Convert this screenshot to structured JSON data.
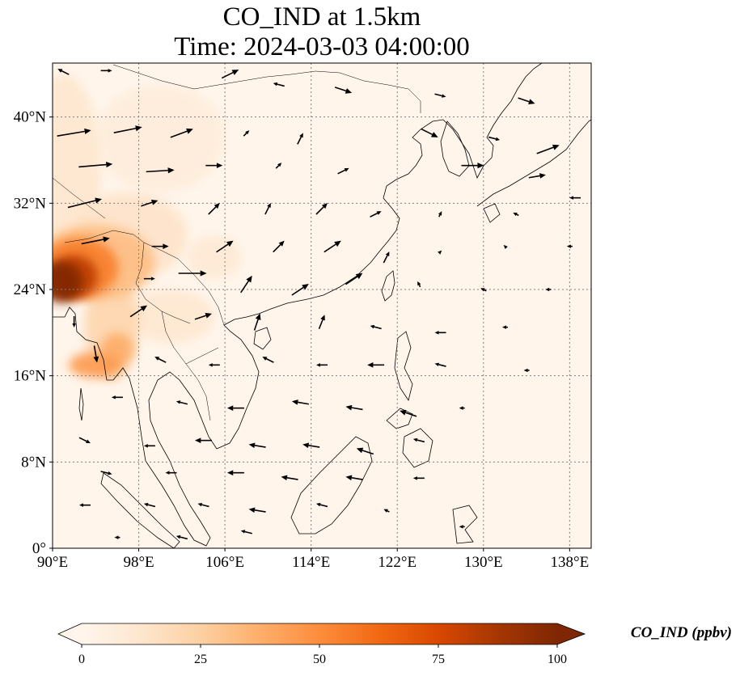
{
  "title": {
    "line1": "CO_IND at 1.5km",
    "line2": "Time: 2024-03-03 04:00:00"
  },
  "map": {
    "lon_range": [
      90,
      140
    ],
    "lat_range": [
      0,
      45
    ],
    "x_ticks": [
      {
        "value": 90,
        "label": "90°E"
      },
      {
        "value": 98,
        "label": "98°E"
      },
      {
        "value": 106,
        "label": "106°E"
      },
      {
        "value": 114,
        "label": "114°E"
      },
      {
        "value": 122,
        "label": "122°E"
      },
      {
        "value": 130,
        "label": "130°E"
      },
      {
        "value": 138,
        "label": "138°E"
      }
    ],
    "y_ticks": [
      {
        "value": 0,
        "label": "0°"
      },
      {
        "value": 8,
        "label": "8°N"
      },
      {
        "value": 16,
        "label": "16°N"
      },
      {
        "value": 24,
        "label": "24°N"
      },
      {
        "value": 32,
        "label": "32°N"
      },
      {
        "value": 40,
        "label": "40°N"
      }
    ],
    "gridlines": true,
    "colors": {
      "gridline": "#808080",
      "coastline": "#000000",
      "arrow": "#000000",
      "background": "#fff5eb"
    }
  },
  "colorbar": {
    "label": "CO_IND (ppbv)",
    "min": 0,
    "max": 100,
    "ticks": [
      {
        "value": 0,
        "label": "0"
      },
      {
        "value": 25,
        "label": "25"
      },
      {
        "value": 50,
        "label": "50"
      },
      {
        "value": 75,
        "label": "75"
      },
      {
        "value": 100,
        "label": "100"
      }
    ],
    "colors": [
      "#fff5eb",
      "#fee6ce",
      "#fdd0a2",
      "#fdae6b",
      "#fd8d3c",
      "#f16913",
      "#d94801",
      "#a63603",
      "#7f2704"
    ],
    "extend": "both"
  },
  "concentration_features": [
    {
      "lon": 90.8,
      "lat": 24.7,
      "rlon": 2.0,
      "rlat": 1.9,
      "value": 100
    },
    {
      "lon": 92.0,
      "lat": 25.2,
      "rlon": 2.2,
      "rlat": 2.0,
      "value": 82
    },
    {
      "lon": 92.5,
      "lat": 26.0,
      "rlon": 3.6,
      "rlat": 2.8,
      "value": 55
    },
    {
      "lon": 94.0,
      "lat": 26.5,
      "rlon": 5.5,
      "rlat": 3.5,
      "value": 32
    },
    {
      "lon": 95.5,
      "lat": 20.5,
      "rlon": 2.5,
      "rlat": 5.0,
      "value": 22
    },
    {
      "lon": 94.0,
      "lat": 17.0,
      "rlon": 2.5,
      "rlat": 1.2,
      "value": 45
    },
    {
      "lon": 96.0,
      "lat": 18.5,
      "rlon": 1.5,
      "rlat": 1.5,
      "value": 38
    },
    {
      "lon": 91.0,
      "lat": 35.0,
      "rlon": 3.5,
      "rlat": 9.0,
      "value": 12
    },
    {
      "lon": 97.0,
      "lat": 29.0,
      "rlon": 5.5,
      "rlat": 4.0,
      "value": 14
    },
    {
      "lon": 101.0,
      "lat": 21.5,
      "rlon": 4.0,
      "rlat": 2.5,
      "value": 11
    },
    {
      "lon": 105.0,
      "lat": 27.0,
      "rlon": 2.5,
      "rlat": 2.0,
      "value": 10
    },
    {
      "lon": 100.0,
      "lat": 38.0,
      "rlon": 6.0,
      "rlat": 5.0,
      "value": 7
    }
  ],
  "wind_vectors": [
    {
      "lon": 91.0,
      "lat": 44.2,
      "u": -2,
      "v": 1
    },
    {
      "lon": 95.0,
      "lat": 44.3,
      "u": 2,
      "v": 0
    },
    {
      "lon": 106.5,
      "lat": 44.0,
      "u": 3,
      "v": 1.5
    },
    {
      "lon": 111.0,
      "lat": 43.0,
      "u": -2,
      "v": 0.5
    },
    {
      "lon": 117.0,
      "lat": 42.5,
      "u": 3,
      "v": -1
    },
    {
      "lon": 126.0,
      "lat": 42.0,
      "u": 2,
      "v": -0.5
    },
    {
      "lon": 134.0,
      "lat": 41.5,
      "u": 3,
      "v": -1
    },
    {
      "lon": 92.0,
      "lat": 38.5,
      "u": 6,
      "v": 1
    },
    {
      "lon": 97.0,
      "lat": 38.8,
      "u": 5,
      "v": 1
    },
    {
      "lon": 102.0,
      "lat": 38.5,
      "u": 4,
      "v": 1.5
    },
    {
      "lon": 108.0,
      "lat": 38.5,
      "u": 1,
      "v": 1
    },
    {
      "lon": 113.0,
      "lat": 38.0,
      "u": 1,
      "v": 2
    },
    {
      "lon": 125.0,
      "lat": 38.5,
      "u": 3,
      "v": -1.5
    },
    {
      "lon": 131.0,
      "lat": 38.0,
      "u": 2,
      "v": -0.5
    },
    {
      "lon": 136.0,
      "lat": 37.0,
      "u": 4,
      "v": 1.5
    },
    {
      "lon": 94.0,
      "lat": 35.5,
      "u": 6,
      "v": 0.5
    },
    {
      "lon": 100.0,
      "lat": 35.0,
      "u": 5,
      "v": 0.3
    },
    {
      "lon": 105.0,
      "lat": 35.5,
      "u": 3,
      "v": 0
    },
    {
      "lon": 111.0,
      "lat": 35.5,
      "u": 1,
      "v": 1
    },
    {
      "lon": 117.0,
      "lat": 35.0,
      "u": 2,
      "v": 1
    },
    {
      "lon": 129.0,
      "lat": 35.5,
      "u": 4,
      "v": 0
    },
    {
      "lon": 135.0,
      "lat": 34.5,
      "u": 3,
      "v": 0.5
    },
    {
      "lon": 93.0,
      "lat": 32.0,
      "u": 6,
      "v": 1.5
    },
    {
      "lon": 99.0,
      "lat": 32.0,
      "u": 3,
      "v": 1
    },
    {
      "lon": 105.0,
      "lat": 31.5,
      "u": 2,
      "v": 2
    },
    {
      "lon": 110.0,
      "lat": 31.5,
      "u": 1,
      "v": 2
    },
    {
      "lon": 115.0,
      "lat": 31.5,
      "u": 2,
      "v": 2
    },
    {
      "lon": 120.0,
      "lat": 31.0,
      "u": 2,
      "v": 1
    },
    {
      "lon": 126.0,
      "lat": 31.0,
      "u": 0.5,
      "v": 1
    },
    {
      "lon": 133.0,
      "lat": 31.0,
      "u": -1,
      "v": 0.5
    },
    {
      "lon": 138.5,
      "lat": 32.5,
      "u": -2,
      "v": 0
    },
    {
      "lon": 94.0,
      "lat": 28.5,
      "u": 5,
      "v": 1
    },
    {
      "lon": 100.0,
      "lat": 28.0,
      "u": 3,
      "v": 0
    },
    {
      "lon": 106.0,
      "lat": 28.0,
      "u": 3,
      "v": 2
    },
    {
      "lon": 111.0,
      "lat": 28.0,
      "u": 2,
      "v": 2
    },
    {
      "lon": 116.0,
      "lat": 28.0,
      "u": 3,
      "v": 2
    },
    {
      "lon": 121.0,
      "lat": 27.0,
      "u": 1,
      "v": 2
    },
    {
      "lon": 126.0,
      "lat": 27.5,
      "u": 0.5,
      "v": 0.5
    },
    {
      "lon": 132.0,
      "lat": 28.0,
      "u": -0.5,
      "v": 0.5
    },
    {
      "lon": 138.0,
      "lat": 28.0,
      "u": -1,
      "v": 0
    },
    {
      "lon": 99.0,
      "lat": 25.0,
      "u": 2,
      "v": 0
    },
    {
      "lon": 103.0,
      "lat": 25.5,
      "u": 5,
      "v": 0
    },
    {
      "lon": 108.0,
      "lat": 24.5,
      "u": 2,
      "v": 3
    },
    {
      "lon": 113.0,
      "lat": 24.0,
      "u": 3,
      "v": 2
    },
    {
      "lon": 118.0,
      "lat": 25.0,
      "u": 3,
      "v": 2
    },
    {
      "lon": 124.0,
      "lat": 24.5,
      "u": -0.5,
      "v": 1
    },
    {
      "lon": 130.0,
      "lat": 24.0,
      "u": -1,
      "v": 0.5
    },
    {
      "lon": 136.0,
      "lat": 24.0,
      "u": -1,
      "v": 0
    },
    {
      "lon": 92.0,
      "lat": 21.0,
      "u": 0,
      "v": -2
    },
    {
      "lon": 98.0,
      "lat": 22.0,
      "u": 3,
      "v": 2
    },
    {
      "lon": 104.0,
      "lat": 21.5,
      "u": 3,
      "v": 1
    },
    {
      "lon": 109.0,
      "lat": 21.0,
      "u": 1,
      "v": 3
    },
    {
      "lon": 115.0,
      "lat": 21.0,
      "u": 1,
      "v": 2.5
    },
    {
      "lon": 120.0,
      "lat": 20.5,
      "u": -2,
      "v": 0.5
    },
    {
      "lon": 126.0,
      "lat": 20.0,
      "u": -2,
      "v": 0
    },
    {
      "lon": 132.0,
      "lat": 20.5,
      "u": -1,
      "v": 0
    },
    {
      "lon": 94.0,
      "lat": 18.0,
      "u": 0.5,
      "v": -3
    },
    {
      "lon": 100.0,
      "lat": 17.5,
      "u": -2,
      "v": 1
    },
    {
      "lon": 105.0,
      "lat": 17.0,
      "u": -2,
      "v": 0
    },
    {
      "lon": 110.0,
      "lat": 17.5,
      "u": -2,
      "v": 1
    },
    {
      "lon": 115.0,
      "lat": 17.0,
      "u": -2,
      "v": 0
    },
    {
      "lon": 120.0,
      "lat": 17.0,
      "u": -3,
      "v": 0
    },
    {
      "lon": 126.0,
      "lat": 17.0,
      "u": -2,
      "v": 0.5
    },
    {
      "lon": 134.0,
      "lat": 16.5,
      "u": -1,
      "v": 0
    },
    {
      "lon": 96.0,
      "lat": 14.0,
      "u": -2,
      "v": 0
    },
    {
      "lon": 102.0,
      "lat": 13.5,
      "u": -2,
      "v": 0.5
    },
    {
      "lon": 107.0,
      "lat": 13.0,
      "u": -3,
      "v": 0
    },
    {
      "lon": 113.0,
      "lat": 13.5,
      "u": -3,
      "v": 0.5
    },
    {
      "lon": 118.0,
      "lat": 13.0,
      "u": -3,
      "v": 0.5
    },
    {
      "lon": 123.0,
      "lat": 12.5,
      "u": -3,
      "v": 1
    },
    {
      "lon": 128.0,
      "lat": 13.0,
      "u": -1,
      "v": 0
    },
    {
      "lon": 93.0,
      "lat": 10.0,
      "u": 2,
      "v": -1
    },
    {
      "lon": 99.0,
      "lat": 9.5,
      "u": -2,
      "v": 0
    },
    {
      "lon": 104.0,
      "lat": 10.0,
      "u": -3,
      "v": 0
    },
    {
      "lon": 109.0,
      "lat": 9.5,
      "u": -3,
      "v": 0.5
    },
    {
      "lon": 114.0,
      "lat": 9.5,
      "u": -3,
      "v": 0.5
    },
    {
      "lon": 119.0,
      "lat": 9.0,
      "u": -3,
      "v": 1
    },
    {
      "lon": 124.0,
      "lat": 10.0,
      "u": -2,
      "v": 0.5
    },
    {
      "lon": 95.0,
      "lat": 7.0,
      "u": 2,
      "v": -0.5
    },
    {
      "lon": 101.0,
      "lat": 7.0,
      "u": -2,
      "v": 0
    },
    {
      "lon": 107.0,
      "lat": 7.0,
      "u": -3,
      "v": 0
    },
    {
      "lon": 112.0,
      "lat": 6.5,
      "u": -3,
      "v": 0.5
    },
    {
      "lon": 118.0,
      "lat": 6.5,
      "u": -3,
      "v": 0.5
    },
    {
      "lon": 124.0,
      "lat": 6.5,
      "u": -2,
      "v": 0
    },
    {
      "lon": 93.0,
      "lat": 4.0,
      "u": -2,
      "v": 0
    },
    {
      "lon": 99.0,
      "lat": 4.0,
      "u": -2,
      "v": 0.5
    },
    {
      "lon": 104.0,
      "lat": 4.0,
      "u": -2,
      "v": 0.5
    },
    {
      "lon": 109.0,
      "lat": 3.5,
      "u": -3,
      "v": 0.5
    },
    {
      "lon": 115.0,
      "lat": 4.0,
      "u": -2,
      "v": 0.5
    },
    {
      "lon": 121.0,
      "lat": 3.5,
      "u": -1,
      "v": 0.5
    },
    {
      "lon": 96.0,
      "lat": 1.0,
      "u": -1,
      "v": 0
    },
    {
      "lon": 102.0,
      "lat": 1.0,
      "u": -2,
      "v": 0.5
    },
    {
      "lon": 108.0,
      "lat": 1.5,
      "u": -2,
      "v": 0.5
    },
    {
      "lon": 128.0,
      "lat": 2.0,
      "u": -1,
      "v": 0
    }
  ]
}
